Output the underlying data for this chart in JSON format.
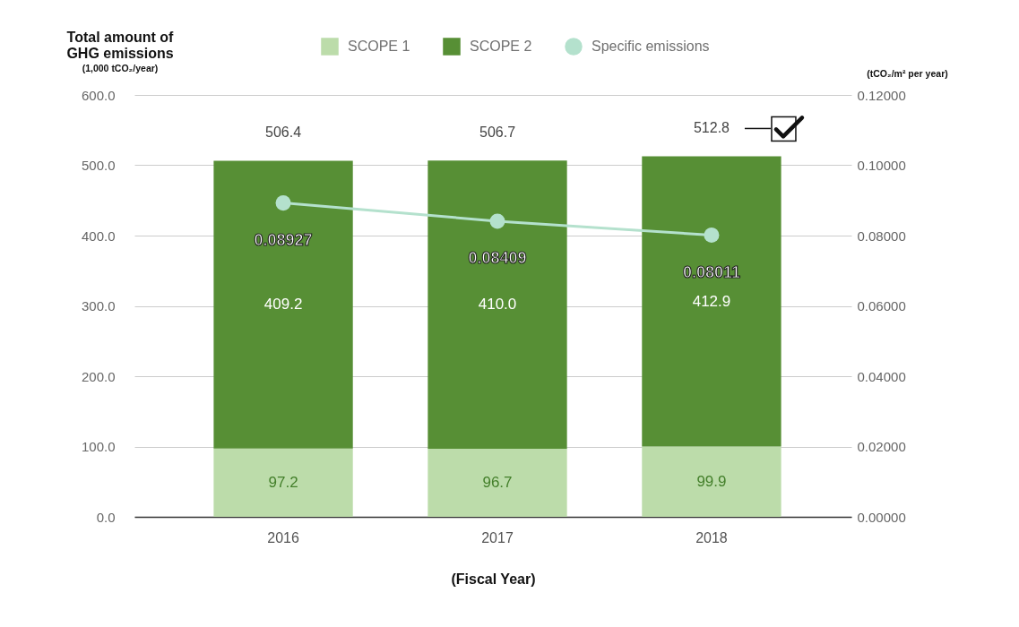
{
  "chart_data": {
    "type": "bar",
    "stacked": true,
    "ylabel": "Total amount of\nGHG emissions\n(1,000 tCO₂/year)",
    "y2label": "(tCO₂/m² per year)",
    "xlabel": "(Fiscal Year)",
    "categories": [
      "2016",
      "2017",
      "2018"
    ],
    "series": [
      {
        "name": "SCOPE 1",
        "color": "#bcdcaa",
        "values": [
          97.2,
          96.7,
          99.9
        ],
        "value_labels": [
          "97.2",
          "96.7",
          "99.9"
        ]
      },
      {
        "name": "SCOPE 2",
        "color": "#578f35",
        "values": [
          409.2,
          410.0,
          412.9
        ],
        "value_labels": [
          "409.2",
          "410.0",
          "412.9"
        ]
      },
      {
        "name": "Specific emissions",
        "type": "line",
        "axis": "y2",
        "color": "#b4e1cd",
        "values": [
          0.08927,
          0.08409,
          0.08011
        ],
        "value_labels": [
          "0.08927",
          "0.08409",
          "0.08011"
        ]
      }
    ],
    "totals": [
      "506.4",
      "506.7",
      "512.8"
    ],
    "ylim": [
      0,
      600
    ],
    "yticks": [
      {
        "value": 0,
        "label": "0.0"
      },
      {
        "value": 100,
        "label": "100.0"
      },
      {
        "value": 200,
        "label": "200.0"
      },
      {
        "value": 300,
        "label": "300.0"
      },
      {
        "value": 400,
        "label": "400.0"
      },
      {
        "value": 500,
        "label": "500.0"
      },
      {
        "value": 600,
        "label": "600.0"
      }
    ],
    "y2lim": [
      0,
      0.12
    ],
    "y2ticks": [
      {
        "value": 0,
        "label": "0.00000"
      },
      {
        "value": 0.02,
        "label": "0.02000"
      },
      {
        "value": 0.04,
        "label": "0.04000"
      },
      {
        "value": 0.06,
        "label": "0.06000"
      },
      {
        "value": 0.08,
        "label": "0.08000"
      },
      {
        "value": 0.1,
        "label": "0.10000"
      },
      {
        "value": 0.12,
        "label": "0.12000"
      }
    ],
    "grid": "y",
    "legend": "top",
    "marker": "circle"
  }
}
